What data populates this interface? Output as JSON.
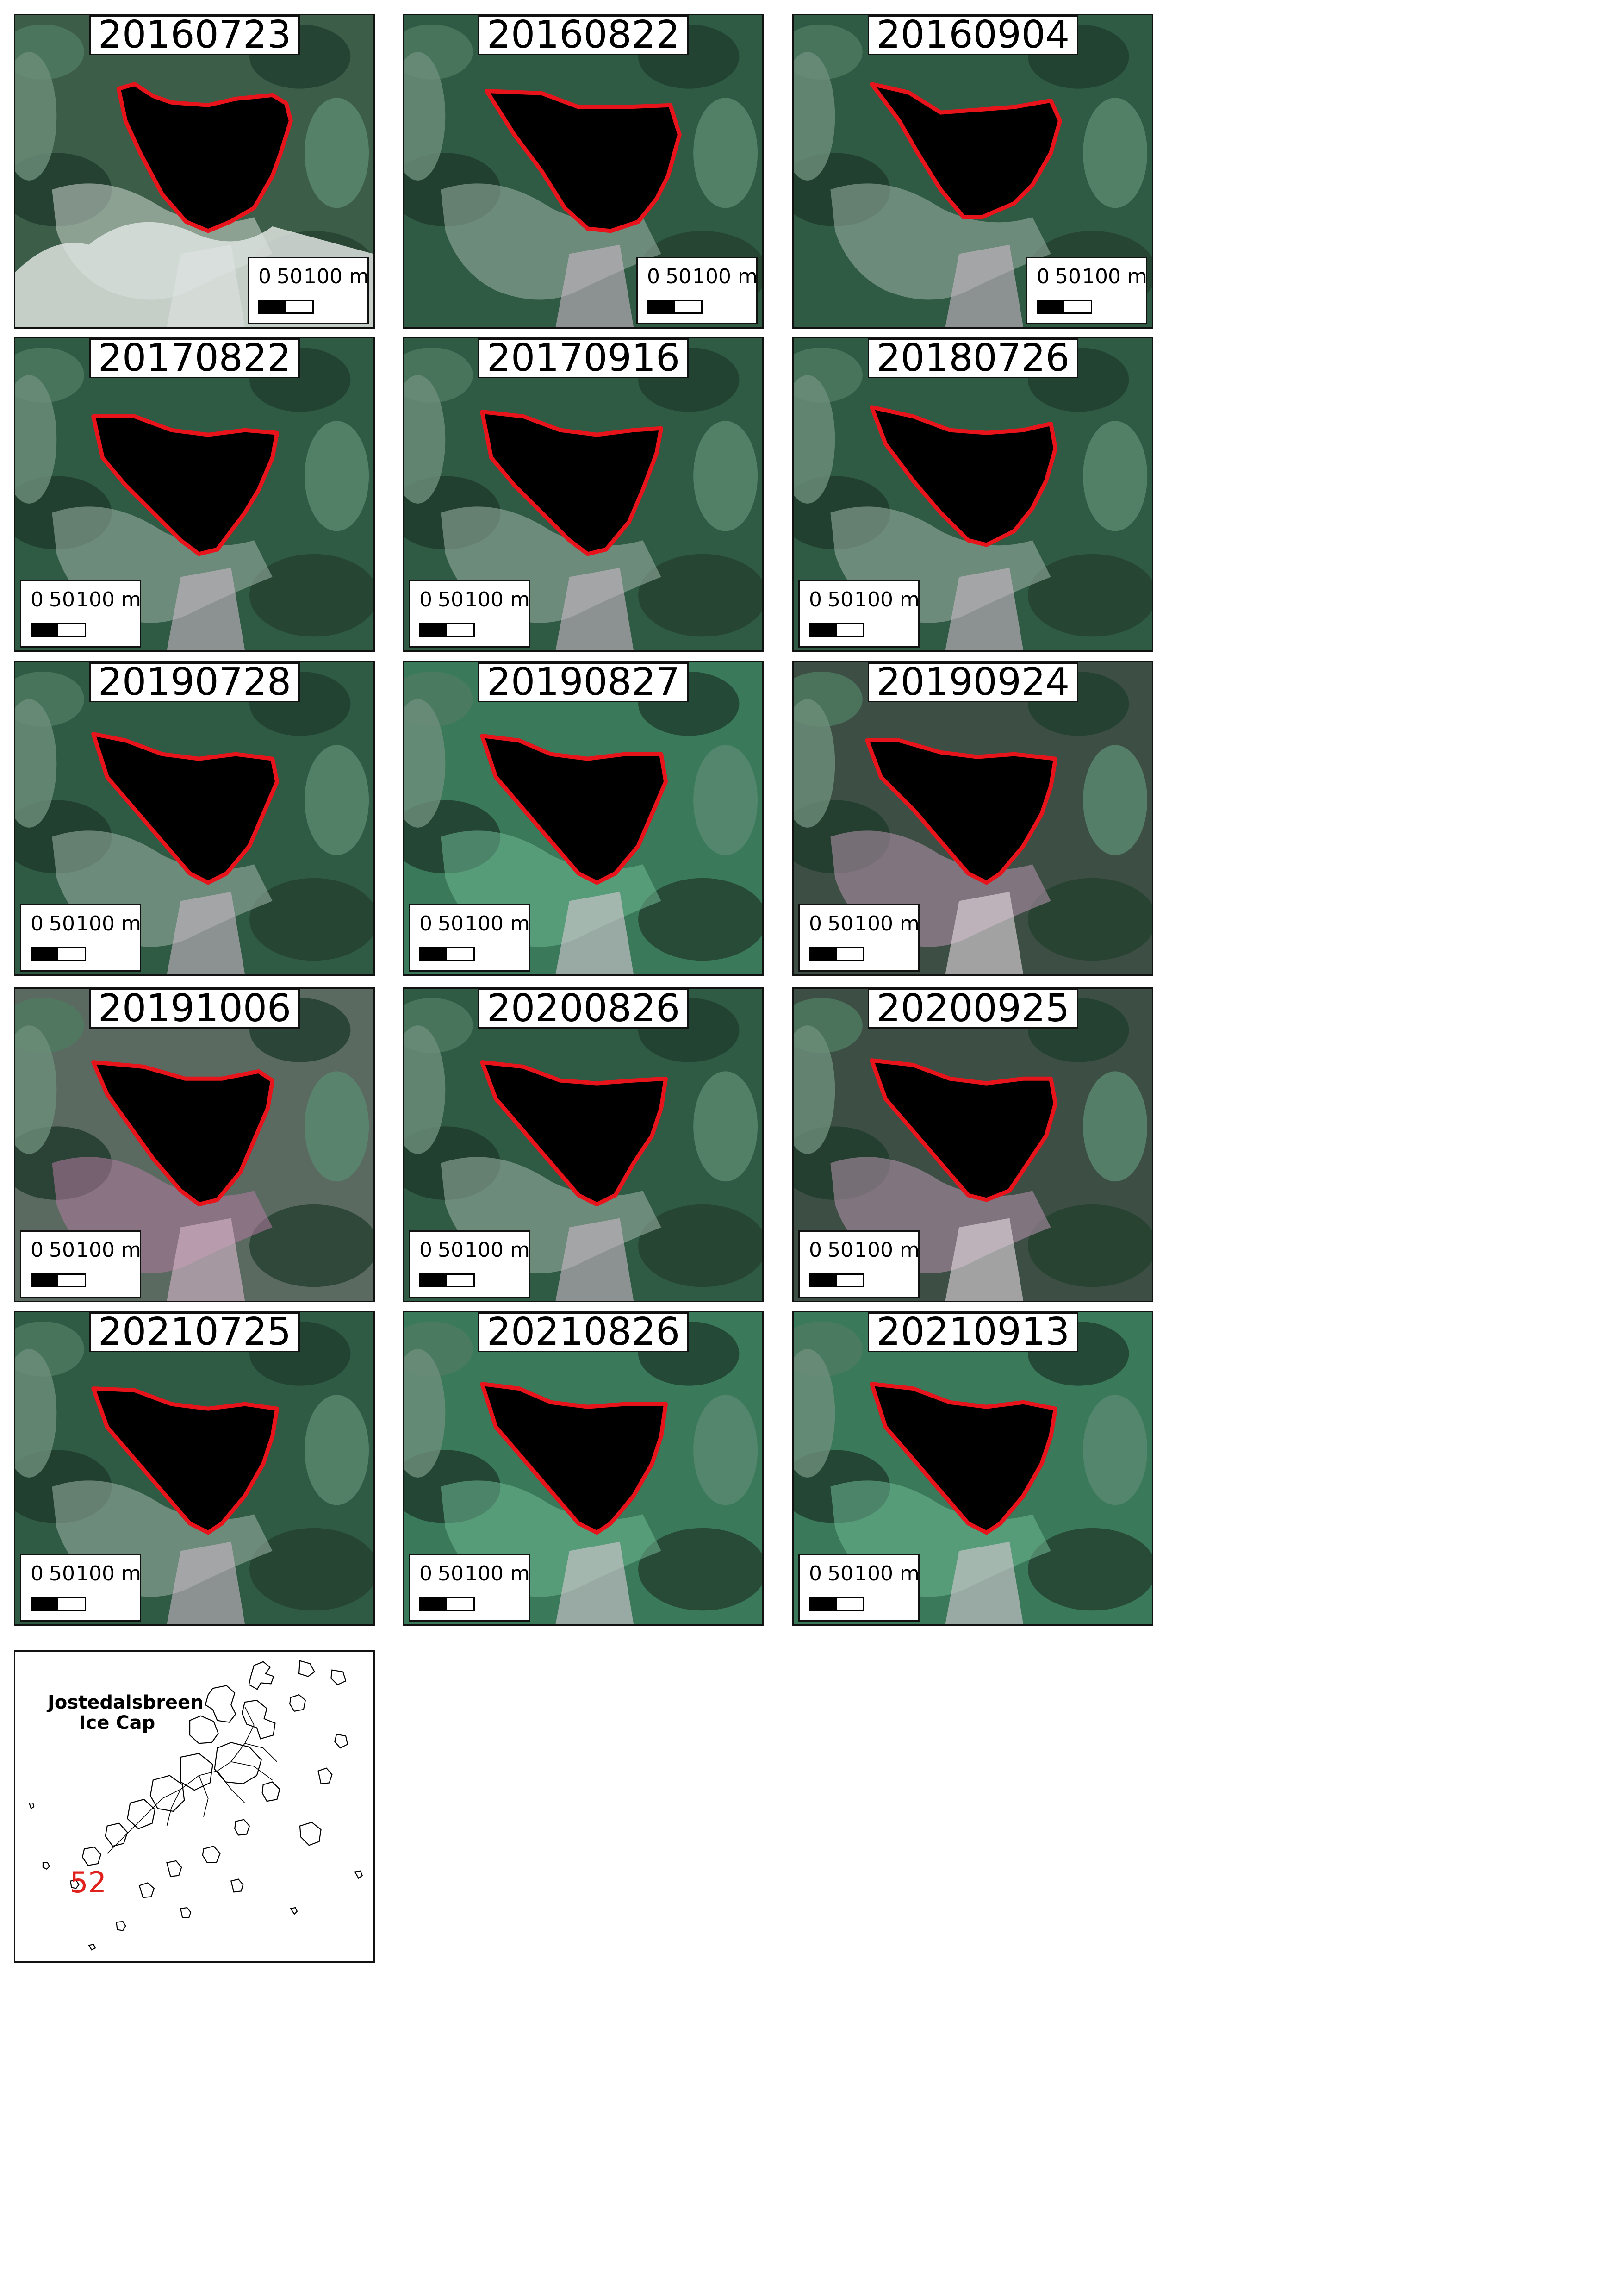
{
  "panels": [
    {
      "date": "20160723",
      "scale_side": "right",
      "scene": "snowy"
    },
    {
      "date": "20160822",
      "scale_side": "right",
      "scene": "green"
    },
    {
      "date": "20160904",
      "scale_side": "right",
      "scene": "green"
    },
    {
      "date": "20170822",
      "scale_side": "left",
      "scene": "green"
    },
    {
      "date": "20170916",
      "scale_side": "left",
      "scene": "green"
    },
    {
      "date": "20180726",
      "scale_side": "left",
      "scene": "green"
    },
    {
      "date": "20190728",
      "scale_side": "left",
      "scene": "green"
    },
    {
      "date": "20190827",
      "scale_side": "left",
      "scene": "bright"
    },
    {
      "date": "20190924",
      "scale_side": "left",
      "scene": "pink"
    },
    {
      "date": "20191006",
      "scale_side": "left",
      "scene": "magenta"
    },
    {
      "date": "20200826",
      "scale_side": "left",
      "scene": "green"
    },
    {
      "date": "20200925",
      "scale_side": "left",
      "scene": "pink"
    },
    {
      "date": "20210725",
      "scale_side": "left",
      "scene": "green"
    },
    {
      "date": "20210826",
      "scale_side": "left",
      "scene": "bright"
    },
    {
      "date": "20210913",
      "scale_side": "left",
      "scene": "bright"
    }
  ],
  "scale": {
    "label_0": "0",
    "label_50": "50",
    "label_100": "100 m"
  },
  "overview": {
    "title_line1": "Jostedalsbreen",
    "title_line2": "Ice Cap",
    "marker": "52"
  },
  "colors": {
    "outline": "#e8141c",
    "lake": "#000000",
    "vegetation": "#2f5a44"
  }
}
